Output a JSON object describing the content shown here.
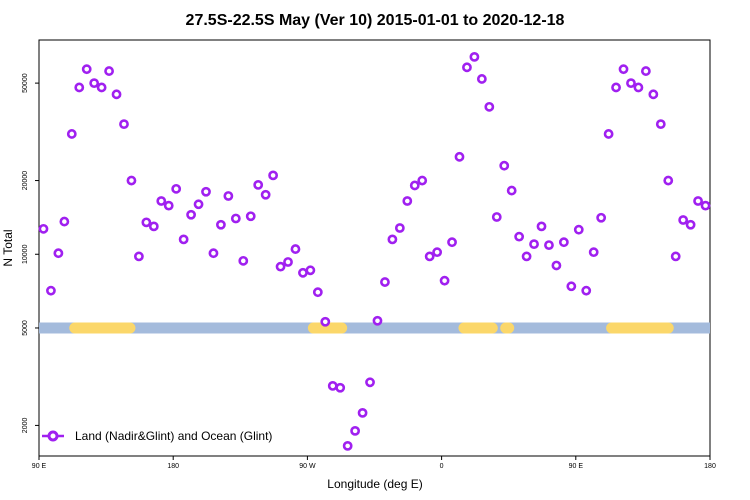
{
  "chart_data": {
    "type": "scatter",
    "title": "27.5S-22.5S May (Ver 10)   2015-01-01 to 2020-12-18",
    "xlabel": "Longitude (deg E)",
    "ylabel": "N Total",
    "yscale": "log",
    "xlim": [
      90,
      540
    ],
    "ylim": [
      1500,
      75000
    ],
    "x_ticks": [
      {
        "value": 90,
        "label": "90 E"
      },
      {
        "value": 180,
        "label": "180"
      },
      {
        "value": 270,
        "label": "90 W"
      },
      {
        "value": 360,
        "label": "0"
      },
      {
        "value": 450,
        "label": "90 E"
      },
      {
        "value": 540,
        "label": "180"
      }
    ],
    "y_ticks": [
      {
        "value": 2000,
        "label": "2000"
      },
      {
        "value": 5000,
        "label": "5000"
      },
      {
        "value": 10000,
        "label": "10000"
      },
      {
        "value": 20000,
        "label": "20000"
      },
      {
        "value": 50000,
        "label": "50000"
      }
    ],
    "legend": {
      "label": "Land (Nadir&Glint) and Ocean (Glint)",
      "position": "bottom-left"
    },
    "colors": {
      "series": "#a020f0",
      "ocean": "#a4bbdc",
      "land": "#fbd76a"
    },
    "surface_band": {
      "y": 5000,
      "land_segments": [
        [
          114,
          151
        ],
        [
          106.5,
          109
        ],
        [
          106.5,
          166
        ],
        [
          107,
          150
        ],
        [
          108,
          165
        ],
        [
          108,
          151
        ],
        [
          107,
          164
        ],
        [
          105.5,
          122
        ],
        [
          106,
          115
        ],
        [
          106.5,
          145
        ],
        [
          107,
          165
        ],
        [
          106.5,
          154
        ],
        [
          107,
          145
        ],
        [
          106.5,
          136
        ],
        [
          106.5,
          120
        ],
        [
          107.5,
          152
        ],
        [
          106,
          165
        ],
        [
          106.5,
          118
        ],
        [
          107,
          160
        ],
        [
          106,
          116
        ],
        [
          107,
          149
        ],
        [
          108,
          165
        ],
        [
          107,
          138
        ],
        [
          108,
          144
        ],
        [
          107,
          122
        ],
        [
          107,
          135
        ],
        [
          108,
          166
        ],
        [
          107,
          138
        ],
        [
          107,
          156
        ],
        [
          107,
          124
        ],
        [
          107,
          154
        ],
        [
          107,
          163
        ],
        [
          107,
          150
        ],
        [
          107,
          138
        ],
        [
          107,
          156
        ],
        [
          107.5,
          160
        ],
        [
          107,
          145
        ],
        [
          107,
          152
        ],
        [
          107.5,
          164
        ],
        [
          107,
          146
        ],
        [
          107,
          130
        ],
        [
          107.5,
          162
        ],
        [
          107,
          140
        ],
        [
          107.5,
          151
        ],
        [
          106.5,
          160
        ],
        [
          107,
          131
        ],
        [
          107,
          155
        ],
        [
          106.5,
          164
        ],
        [
          107,
          141
        ],
        [
          107,
          136
        ],
        [
          107,
          120
        ],
        [
          107,
          158
        ],
        [
          107,
          130
        ],
        [
          107,
          149
        ],
        [
          107.5,
          164
        ],
        [
          108,
          162
        ],
        [
          106.5,
          154
        ],
        [
          107,
          162
        ],
        [
          107.5,
          165
        ],
        [
          108,
          140
        ],
        [
          107,
          134
        ],
        [
          107,
          160
        ],
        [
          107,
          140
        ],
        [
          107,
          145
        ],
        [
          106.5,
          148
        ],
        [
          107,
          164
        ],
        [
          107,
          128
        ],
        [
          107,
          158
        ],
        [
          107,
          158
        ],
        [
          107,
          150
        ],
        [
          107,
          165
        ],
        [
          107,
          155
        ],
        [
          107,
          160
        ],
        [
          107,
          150
        ],
        [
          107.5,
          164
        ],
        [
          106.5,
          162
        ],
        [
          106.5,
          144
        ],
        [
          107,
          155
        ],
        [
          107,
          140
        ],
        [
          107,
          160
        ],
        [
          107,
          148
        ],
        [
          107,
          158
        ],
        [
          107,
          150
        ],
        [
          107,
          136
        ],
        [
          107,
          162
        ],
        [
          107,
          154
        ],
        [
          107,
          150
        ],
        [
          107,
          134
        ],
        [
          107,
          155
        ],
        [
          107,
          160
        ],
        [
          107,
          146
        ],
        [
          107,
          136
        ],
        [
          107,
          144
        ],
        [
          107,
          156
        ],
        [
          107,
          152
        ],
        [
          107,
          148
        ],
        [
          107,
          158
        ],
        [
          107,
          165
        ],
        [
          107,
          160
        ],
        [
          107,
          155
        ],
        [
          107,
          150
        ],
        [
          107,
          145
        ],
        [
          107,
          140
        ],
        [
          107,
          162
        ],
        [
          107,
          158
        ],
        [
          107,
          152
        ],
        [
          107,
          140
        ],
        [
          107,
          160
        ],
        [
          107,
          150
        ],
        [
          107,
          145
        ],
        [
          107,
          164
        ],
        [
          107,
          156
        ],
        [
          107,
          148
        ],
        [
          107,
          158
        ],
        [
          107,
          163
        ],
        [
          107,
          154
        ],
        [
          107,
          146
        ],
        [
          107,
          151
        ],
        [
          107,
          159
        ],
        [
          107,
          162
        ],
        [
          107,
          149
        ],
        [
          107,
          156
        ],
        [
          107,
          143
        ],
        [
          107,
          161
        ],
        [
          107,
          153
        ],
        [
          107,
          147
        ],
        [
          107,
          157
        ],
        [
          107,
          142
        ],
        [
          107,
          160
        ],
        [
          107,
          150
        ]
      ],
      "land_ranges": [
        [
          114,
          151
        ],
        [
          274,
          293
        ],
        [
          375,
          394
        ],
        [
          403,
          405
        ],
        [
          474,
          512
        ]
      ]
    },
    "series": [
      {
        "name": "Land (Nadir&Glint) and Ocean (Glint)",
        "x": [
          93,
          98,
          103,
          107,
          112,
          117,
          122,
          127,
          132,
          137,
          142,
          147,
          152,
          157,
          162,
          167,
          172,
          177,
          182,
          187,
          192,
          197,
          202,
          207,
          212,
          217,
          222,
          227,
          232,
          237,
          242,
          247,
          252,
          257,
          262,
          267,
          272,
          277,
          282,
          287,
          292,
          297,
          302,
          307,
          312,
          317,
          322,
          327,
          332,
          337,
          342,
          347,
          352,
          357,
          362,
          367,
          372,
          377,
          382,
          387,
          392,
          397,
          402,
          407,
          412,
          417,
          422,
          427,
          432,
          437,
          442,
          447,
          452,
          457,
          462,
          467,
          472,
          477,
          482,
          487,
          492,
          497,
          502,
          507,
          512,
          517,
          522,
          527,
          532,
          537
        ],
        "y": [
          12700,
          7100,
          10100,
          13600,
          31000,
          48000,
          57000,
          50000,
          48000,
          56000,
          45000,
          34000,
          20000,
          9800,
          13500,
          13000,
          16500,
          15800,
          18500,
          11500,
          14500,
          16000,
          18000,
          10100,
          13200,
          17300,
          14000,
          9400,
          14300,
          19200,
          17500,
          21000,
          8900,
          9300,
          10500,
          8400,
          8600,
          7000,
          5300,
          2900,
          2850,
          1650,
          1900,
          2250,
          3000,
          5350,
          7700,
          11500,
          12800,
          16500,
          19100,
          20000,
          9800,
          10200,
          7800,
          11200,
          25000,
          58000,
          64000,
          52000,
          40000,
          14200,
          23000,
          18200,
          11800,
          9800,
          11000,
          13000,
          10900,
          9000,
          11200,
          7400,
          12600,
          7100,
          10200,
          14100,
          31000,
          48000,
          57000,
          50000,
          48000,
          56000,
          45000,
          34000,
          20000,
          9800,
          13800,
          13200,
          16500,
          15800
        ]
      }
    ]
  }
}
